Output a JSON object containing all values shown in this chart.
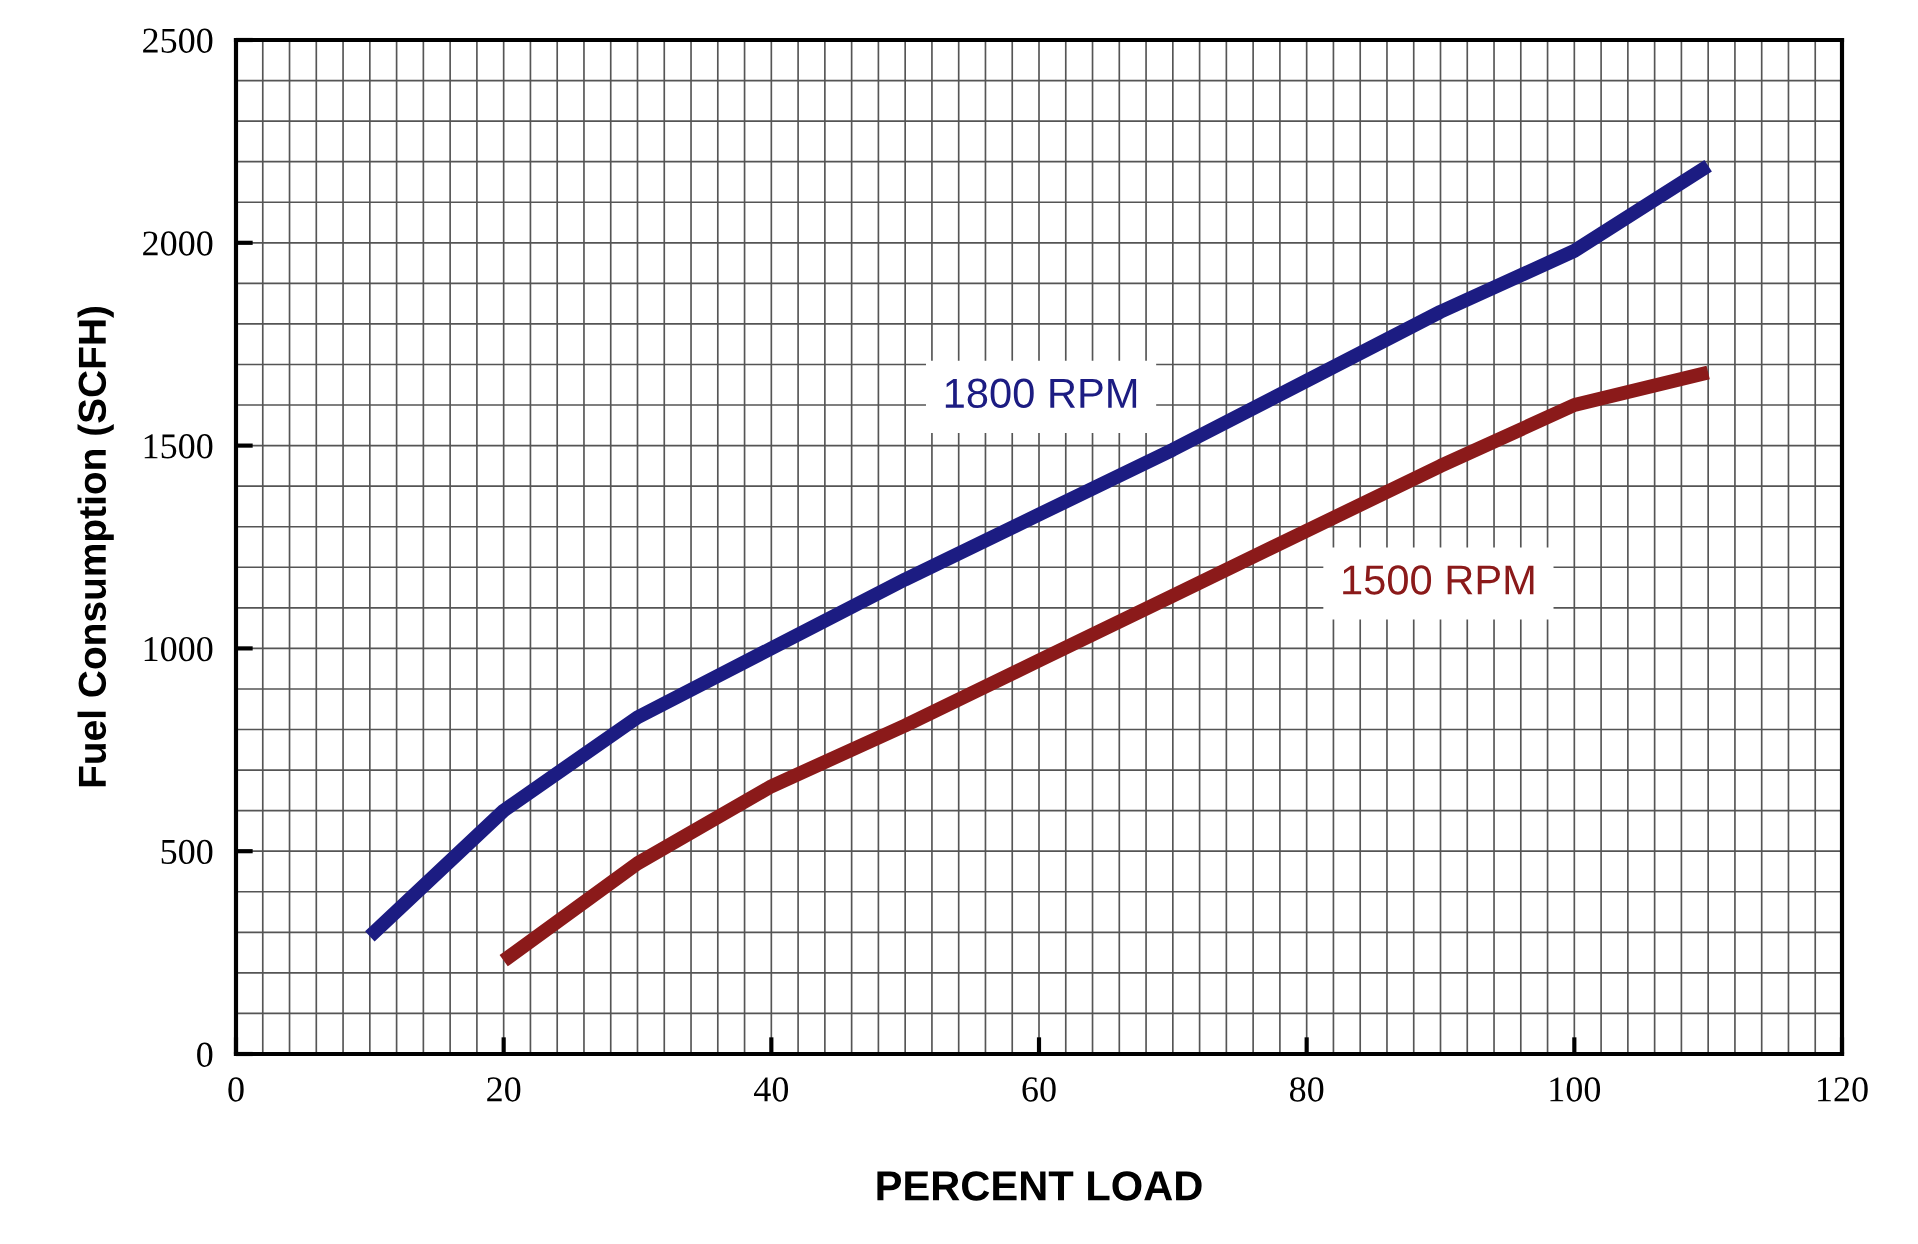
{
  "chart_data": {
    "type": "line",
    "xlabel": "PERCENT LOAD",
    "ylabel": "Fuel Consumption (SCFH)",
    "xlim": [
      0,
      120
    ],
    "xticks": [
      0,
      20,
      40,
      60,
      80,
      100,
      120
    ],
    "ylim": [
      0,
      2500
    ],
    "yticks": [
      0,
      500,
      1000,
      1500,
      2000,
      2500
    ],
    "grid": true,
    "line_style": "solid",
    "marker": "none",
    "series": [
      {
        "name": "1800 RPM",
        "color": "#1c1c82",
        "x": [
          10,
          20,
          30,
          40,
          50,
          60,
          70,
          80,
          90,
          100,
          110
        ],
        "values": [
          290,
          600,
          830,
          1000,
          1170,
          1330,
          1490,
          1660,
          1830,
          1980,
          2190
        ]
      },
      {
        "name": "1500 RPM",
        "color": "#8b1a1a",
        "x": [
          20,
          30,
          40,
          50,
          60,
          70,
          80,
          90,
          100,
          110
        ],
        "values": [
          230,
          470,
          660,
          810,
          970,
          1130,
          1290,
          1450,
          1600,
          1680
        ]
      }
    ]
  }
}
